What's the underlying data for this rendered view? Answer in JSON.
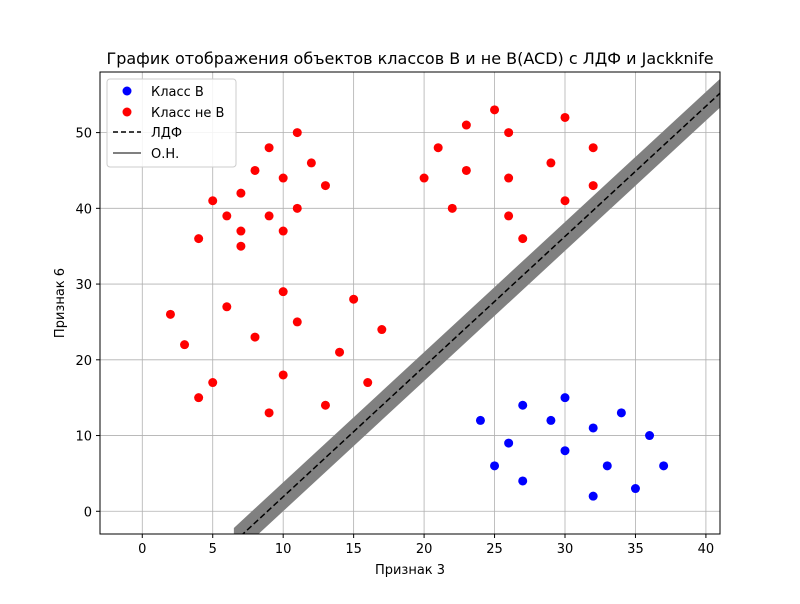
{
  "chart_data": {
    "type": "scatter",
    "title": "График отображения объектов классов B и не B(ACD) с ЛДФ и Jackknife",
    "xlabel": "Признак 3",
    "ylabel": "Признак 6",
    "xlim": [
      -3,
      41
    ],
    "ylim": [
      -3,
      58
    ],
    "xticks": [
      0,
      5,
      10,
      15,
      20,
      25,
      30,
      35,
      40
    ],
    "yticks": [
      0,
      10,
      20,
      30,
      40,
      50
    ],
    "grid": true,
    "legend_position": "top-left",
    "series": [
      {
        "name": "Класс B",
        "color": "#0000ff",
        "points": [
          [
            24,
            12
          ],
          [
            25,
            6
          ],
          [
            26,
            9
          ],
          [
            27,
            14
          ],
          [
            27,
            4
          ],
          [
            29,
            12
          ],
          [
            30,
            15
          ],
          [
            30,
            8
          ],
          [
            32,
            11
          ],
          [
            32,
            2
          ],
          [
            33,
            6
          ],
          [
            34,
            13
          ],
          [
            35,
            3
          ],
          [
            36,
            10
          ],
          [
            37,
            6
          ]
        ]
      },
      {
        "name": "Класс не B",
        "color": "#ff0000",
        "points": [
          [
            4,
            36
          ],
          [
            5,
            41
          ],
          [
            6,
            39
          ],
          [
            7,
            42
          ],
          [
            7,
            37
          ],
          [
            7,
            35
          ],
          [
            8,
            45
          ],
          [
            9,
            48
          ],
          [
            9,
            39
          ],
          [
            10,
            44
          ],
          [
            10,
            37
          ],
          [
            11,
            50
          ],
          [
            11,
            40
          ],
          [
            12,
            46
          ],
          [
            13,
            43
          ],
          [
            2,
            26
          ],
          [
            3,
            22
          ],
          [
            4,
            15
          ],
          [
            5,
            17
          ],
          [
            6,
            27
          ],
          [
            8,
            23
          ],
          [
            9,
            13
          ],
          [
            10,
            29
          ],
          [
            10,
            18
          ],
          [
            11,
            25
          ],
          [
            13,
            14
          ],
          [
            14,
            21
          ],
          [
            15,
            28
          ],
          [
            16,
            17
          ],
          [
            17,
            24
          ],
          [
            20,
            44
          ],
          [
            21,
            48
          ],
          [
            22,
            40
          ],
          [
            23,
            51
          ],
          [
            23,
            45
          ],
          [
            25,
            53
          ],
          [
            26,
            50
          ],
          [
            26,
            44
          ],
          [
            26,
            39
          ],
          [
            27,
            36
          ],
          [
            29,
            46
          ],
          [
            30,
            52
          ],
          [
            30,
            41
          ],
          [
            32,
            48
          ],
          [
            32,
            43
          ]
        ]
      }
    ],
    "lines": [
      {
        "name": "ЛДФ",
        "color": "#000000",
        "style": "dashed",
        "x": [
          6.5,
          41
        ],
        "y": [
          -4.1,
          55.2
        ]
      },
      {
        "name": "О.Н.",
        "color": "#808080",
        "style": "band",
        "x": [
          6.5,
          41
        ],
        "y": [
          -4.1,
          55.2
        ],
        "half_width_y": 1.9
      }
    ]
  }
}
